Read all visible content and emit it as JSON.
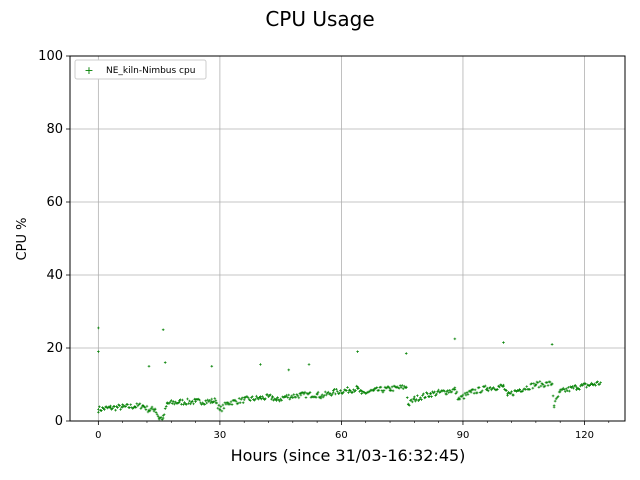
{
  "chart_data": {
    "type": "scatter",
    "title": "CPU Usage",
    "xlabel": "Hours (since 31/03-16:32:45)",
    "ylabel": "CPU %",
    "xlim": [
      -7,
      130
    ],
    "ylim": [
      0,
      100
    ],
    "xticks": [
      0,
      30,
      60,
      90,
      120
    ],
    "xtick_labels": [
      "0",
      "30",
      "60",
      "90",
      "120"
    ],
    "yticks": [
      0,
      20,
      40,
      60,
      80,
      100
    ],
    "ytick_labels": [
      "0",
      "20",
      "40",
      "60",
      "80",
      "100"
    ],
    "grid": true,
    "legend": {
      "position": "top-left",
      "entries": [
        "NE_kiln-Nimbus cpu"
      ]
    },
    "series": [
      {
        "name": "NE_kiln-Nimbus cpu",
        "color": "#008000",
        "marker": "+",
        "x": [
          0,
          3,
          6,
          9,
          11,
          12.5,
          14,
          15,
          16,
          17,
          20,
          24,
          28,
          29,
          30,
          32,
          36,
          40,
          43,
          44,
          46,
          50,
          54,
          55,
          58,
          62,
          64,
          65,
          68,
          72,
          76,
          76.5,
          78,
          82,
          86,
          88,
          89,
          92,
          96,
          100,
          101,
          104,
          108,
          112,
          112.5,
          114,
          118,
          122,
          124
        ],
        "y": [
          3.2,
          3.6,
          3.8,
          4.0,
          4.2,
          3.0,
          3.3,
          0.8,
          0.8,
          4.8,
          5.2,
          5.3,
          5.4,
          5.6,
          3.0,
          5.0,
          5.8,
          6.3,
          6.5,
          5.6,
          6.6,
          7.1,
          7.3,
          6.8,
          7.9,
          8.5,
          8.9,
          7.5,
          8.3,
          8.8,
          9.3,
          4.5,
          6.0,
          7.4,
          8.1,
          8.6,
          6.0,
          7.9,
          9.0,
          9.5,
          7.0,
          8.6,
          10.0,
          10.2,
          4.2,
          8.0,
          9.3,
          10.0,
          10.5
        ],
        "outliers_x": [
          0,
          0,
          12.5,
          16,
          16.5,
          28,
          40,
          47,
          52,
          64,
          76,
          88,
          100,
          112
        ],
        "outliers_y": [
          25.5,
          19,
          15,
          25,
          16,
          15,
          15.5,
          14,
          15.5,
          19,
          18.5,
          22.5,
          21.5,
          21
        ]
      }
    ]
  }
}
